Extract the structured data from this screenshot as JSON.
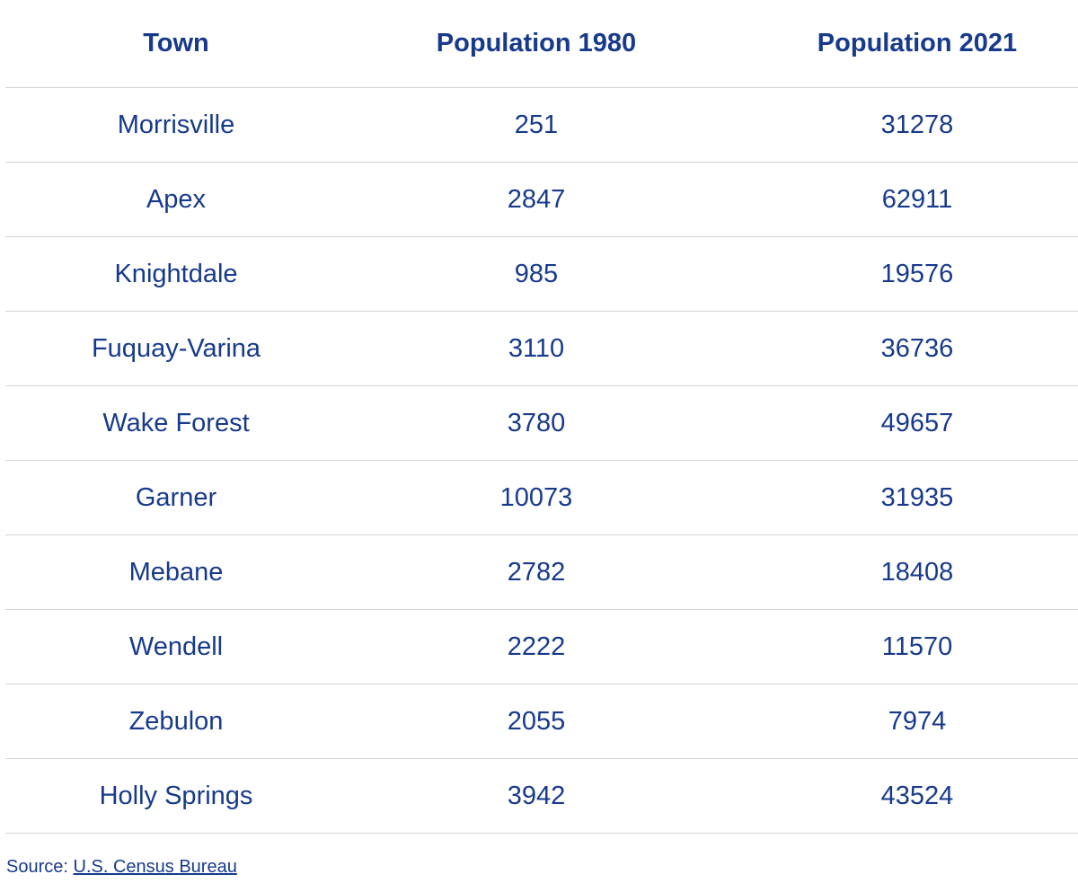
{
  "table": {
    "headers": [
      "Town",
      "Population 1980",
      "Population 2021"
    ],
    "rows": [
      [
        "Morrisville",
        251,
        31278
      ],
      [
        "Apex",
        2847,
        62911
      ],
      [
        "Knightdale",
        985,
        19576
      ],
      [
        "Fuquay-Varina",
        3110,
        36736
      ],
      [
        "Wake Forest",
        3780,
        49657
      ],
      [
        "Garner",
        10073,
        31935
      ],
      [
        "Mebane",
        2782,
        18408
      ],
      [
        "Wendell",
        2222,
        11570
      ],
      [
        "Zebulon",
        2055,
        7974
      ],
      [
        "Holly Springs",
        3942,
        43524
      ]
    ]
  },
  "source": {
    "label": "Source:",
    "link": "U.S. Census Bureau"
  }
}
